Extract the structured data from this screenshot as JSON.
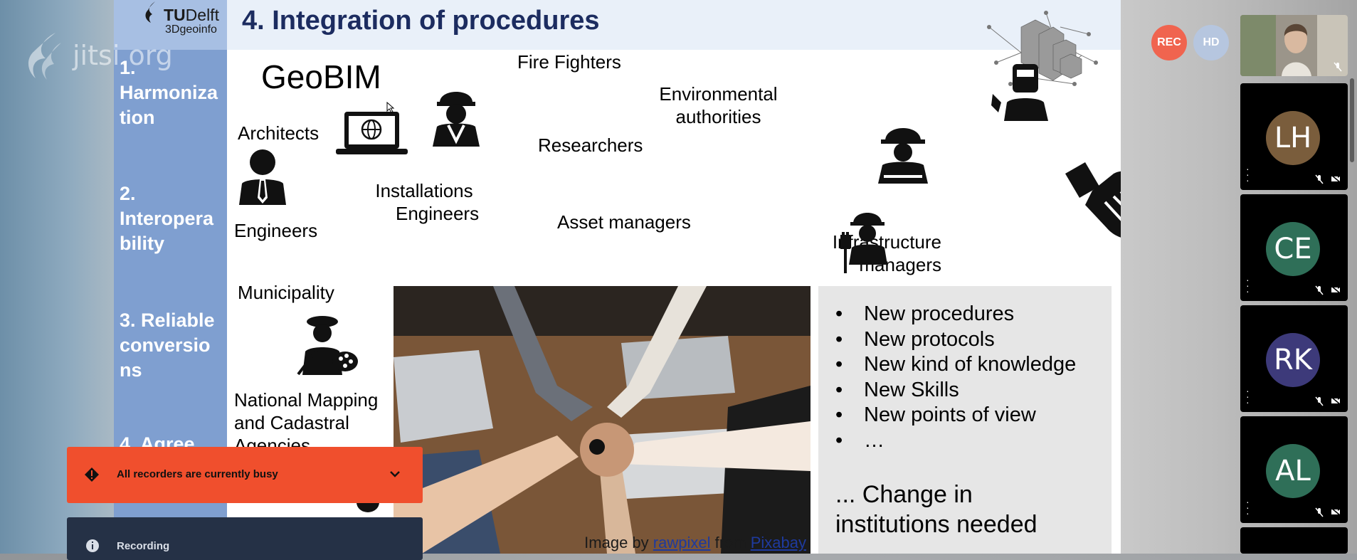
{
  "brand": {
    "watermark": "jitsi.org"
  },
  "slide": {
    "logo": {
      "tu": "TU",
      "delft": "Delft",
      "geoinfo": "3Dgeoinfo"
    },
    "title": "4. Integration of procedures",
    "steps": [
      "1. Harmoniza tion",
      "2. Interopera bility",
      "3. Reliable conversio ns",
      "4. Agree"
    ],
    "stakeholders": {
      "geobim": "GeoBIM",
      "architects": "Architects",
      "engineers": "Engineers",
      "installations_1": "Installations",
      "installations_2": "Engineers",
      "fire_fighters": "Fire Fighters",
      "researchers": "Researchers",
      "asset_managers": "Asset managers",
      "env_1": "Environmental",
      "env_2": "authorities",
      "infra_1": "Infrastructure",
      "infra_2": "managers",
      "municipality": "Municipality",
      "nmca_1": "National Mapping",
      "nmca_2": "and Cadastral",
      "nmca_3": "Agencies"
    },
    "photo_caption": {
      "prefix": "Image by ",
      "author": "rawpixel",
      "mid": " from ",
      "source": "Pixabay"
    },
    "bullets": [
      "New procedures",
      "New protocols",
      "New kind of knowledge",
      "New Skills",
      "New points of view",
      "…"
    ],
    "conclusion_1": "... Change in",
    "conclusion_2": "institutions needed"
  },
  "toolbar": {
    "rec": "REC",
    "hd": "HD"
  },
  "filmstrip": [
    {
      "initials": "LH",
      "color": "#7a5d3c"
    },
    {
      "initials": "CE",
      "color": "#2f6f58"
    },
    {
      "initials": "RK",
      "color": "#3d3a7a"
    },
    {
      "initials": "AL",
      "color": "#2f6f58"
    }
  ],
  "notifications": {
    "busy": "All recorders are currently busy",
    "recording": "Recording"
  }
}
